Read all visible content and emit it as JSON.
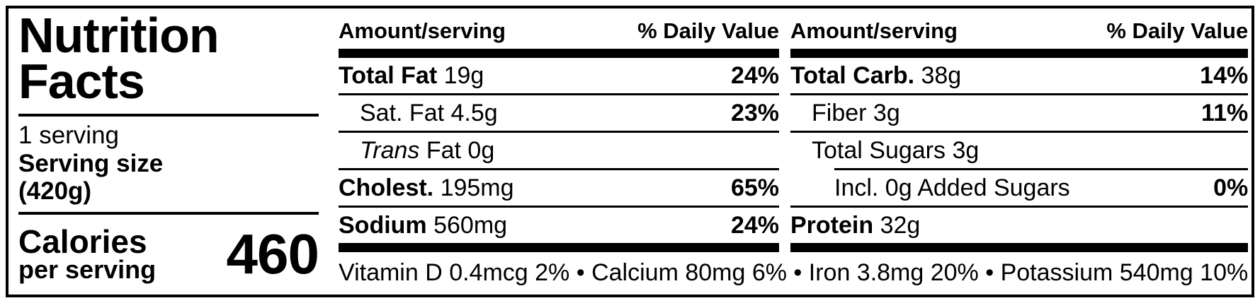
{
  "label": {
    "title_line1": "Nutrition",
    "title_line2": "Facts",
    "servings_per_container": "1 serving",
    "serving_size_label": "Serving size",
    "serving_size_value": "(420g)",
    "calories_label": "Calories",
    "calories_sublabel": "per serving",
    "calories_value": "460",
    "colors": {
      "text": "#000000",
      "background": "#ffffff"
    }
  },
  "header": {
    "amount": "Amount/serving",
    "dv": "% Daily Value"
  },
  "columns": [
    {
      "rows": [
        {
          "bold": "Total Fat",
          "italic": "",
          "rest": " 19g",
          "dv": "24%"
        },
        {
          "bold": "",
          "italic": "",
          "rest": "Sat. Fat 4.5g",
          "dv": "23%"
        },
        {
          "bold": "",
          "italic": "Trans",
          "rest": " Fat 0g",
          "dv": ""
        },
        {
          "bold": "Cholest.",
          "italic": "",
          "rest": " 195mg",
          "dv": "65%"
        },
        {
          "bold": "Sodium",
          "italic": "",
          "rest": " 560mg",
          "dv": "24%"
        }
      ]
    },
    {
      "rows": [
        {
          "bold": "Total Carb.",
          "italic": "",
          "rest": " 38g",
          "dv": "14%"
        },
        {
          "bold": "",
          "italic": "",
          "rest": "Fiber 3g",
          "dv": "11%"
        },
        {
          "bold": "",
          "italic": "",
          "rest": "Total Sugars 3g",
          "dv": ""
        },
        {
          "bold": "",
          "italic": "",
          "rest": "Incl. 0g Added Sugars",
          "dv": "0%"
        },
        {
          "bold": "Protein",
          "italic": "",
          "rest": " 32g",
          "dv": ""
        }
      ]
    }
  ],
  "footer": "Vitamin D 0.4mcg 2% • Calcium 80mg 6% • Iron 3.8mg 20% • Potassium 540mg 10%"
}
